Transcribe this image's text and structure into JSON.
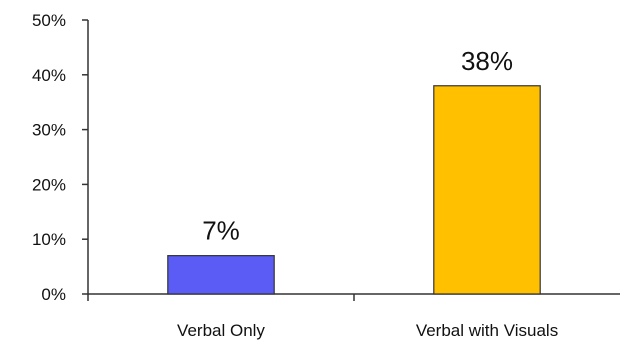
{
  "chart_data": {
    "type": "bar",
    "title": "",
    "xlabel": "",
    "ylabel": "",
    "categories": [
      "Verbal Only",
      "Verbal with Visuals"
    ],
    "values": [
      7,
      38
    ],
    "data_labels": [
      "7%",
      "38%"
    ],
    "ylim": [
      0,
      50
    ],
    "yticks": [
      0,
      10,
      20,
      30,
      40,
      50
    ],
    "ytick_labels": [
      "0%",
      "10%",
      "20%",
      "30%",
      "40%",
      "50%"
    ],
    "colors": [
      "#5b5bf5",
      "#ffc000"
    ],
    "grid": false,
    "legend": "none"
  }
}
